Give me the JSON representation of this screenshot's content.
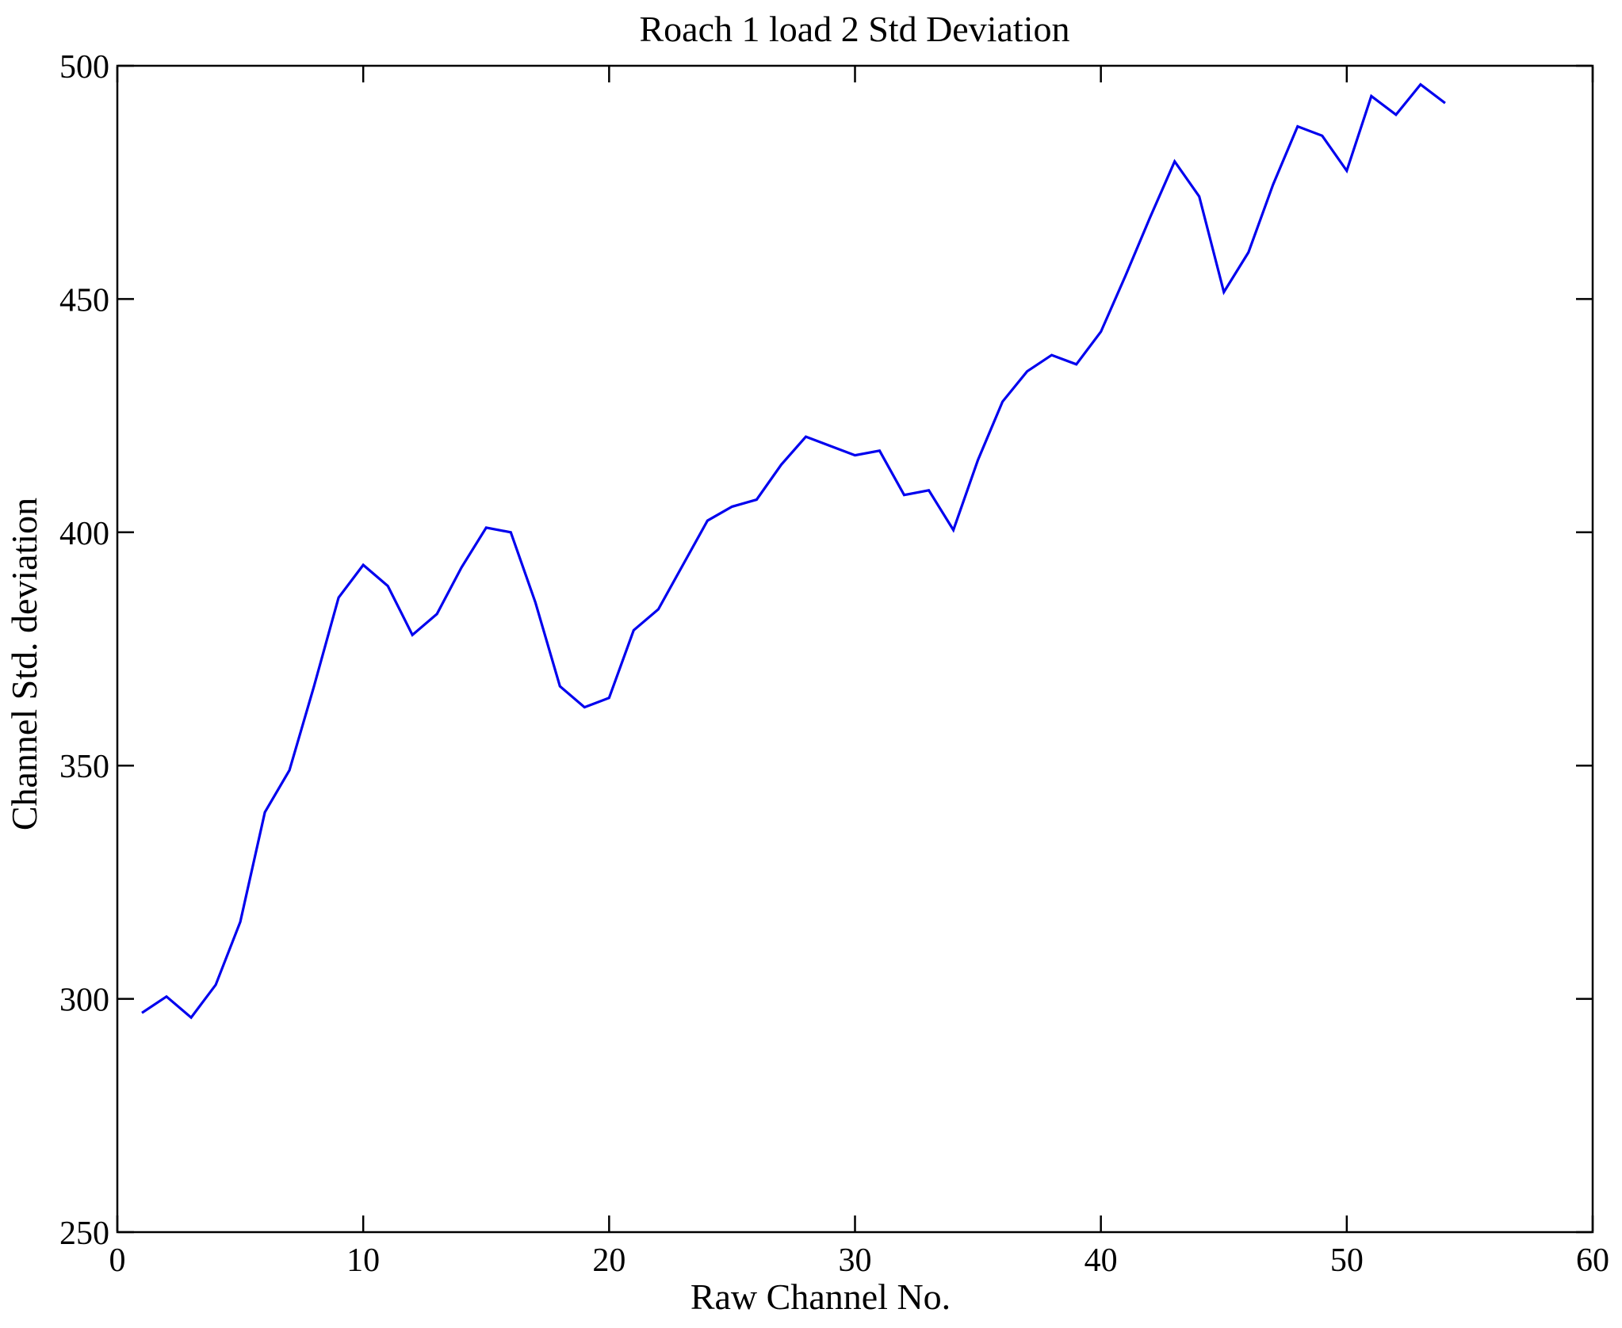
{
  "figure": {
    "background": "#ffffff",
    "axis_color": "#000000",
    "line_color": "#0000ee",
    "title": "Roach 1 load 2 Std Deviation"
  },
  "chart_data": {
    "type": "line",
    "title": "Roach 1 load 2 Std Deviation",
    "xlabel": "Raw Channel No.",
    "ylabel": "Channel Std. deviation",
    "xlim": [
      0,
      60
    ],
    "ylim": [
      250,
      500
    ],
    "xticks": [
      0,
      10,
      20,
      30,
      40,
      50,
      60
    ],
    "yticks": [
      250,
      300,
      350,
      400,
      450,
      500
    ],
    "grid": false,
    "legend_position": "none",
    "box": true,
    "series": [
      {
        "name": "channel-std-deviation",
        "color": "#0000ee",
        "x": [
          1,
          2,
          3,
          4,
          5,
          6,
          7,
          8,
          9,
          10,
          11,
          12,
          13,
          14,
          15,
          16,
          17,
          18,
          19,
          20,
          21,
          22,
          23,
          24,
          25,
          26,
          27,
          28,
          29,
          30,
          31,
          32,
          33,
          34,
          35,
          36,
          37,
          38,
          39,
          40,
          41,
          42,
          43,
          44,
          45,
          46,
          47,
          48,
          49,
          50,
          51,
          52,
          53,
          54
        ],
        "values": [
          297,
          300.5,
          296,
          303,
          316.5,
          340,
          349,
          367,
          386,
          393,
          388.5,
          378,
          382.5,
          392.5,
          401,
          400,
          385,
          367,
          362.5,
          364.5,
          379,
          383.5,
          393,
          402.5,
          405.5,
          407,
          414.5,
          420.5,
          418.5,
          416.5,
          417.5,
          408,
          409,
          400.5,
          415.5,
          428,
          434.5,
          438,
          436,
          443,
          455,
          467.5,
          479.5,
          472,
          451.5,
          460,
          474.5,
          487,
          485,
          477.5,
          493.5,
          489.5,
          496,
          492
        ]
      }
    ]
  }
}
